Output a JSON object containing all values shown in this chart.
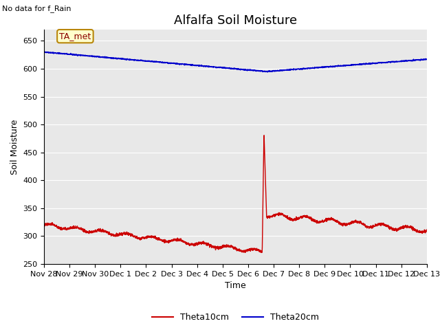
{
  "title": "Alfalfa Soil Moisture",
  "xlabel": "Time",
  "ylabel": "Soil Moisture",
  "top_left_text": "No data for f_Rain",
  "legend_label": "TA_met",
  "ylim": [
    250,
    670
  ],
  "yticks": [
    250,
    300,
    350,
    400,
    450,
    500,
    550,
    600,
    650
  ],
  "background_color": "#e8e8e8",
  "line1_color": "#cc0000",
  "line1_label": "Theta10cm",
  "line2_color": "#0000cc",
  "line2_label": "Theta20cm",
  "xtick_labels": [
    "Nov 28",
    "Nov 29",
    "Nov 30",
    "Dec 1",
    "Dec 2",
    "Dec 3",
    "Dec 4",
    "Dec 5",
    "Dec 6",
    "Dec 7",
    "Dec 8",
    "Dec 9",
    "Dec 10",
    "Dec 11",
    "Dec 12",
    "Dec 13"
  ],
  "title_fontsize": 13,
  "axis_label_fontsize": 9,
  "tick_fontsize": 8
}
